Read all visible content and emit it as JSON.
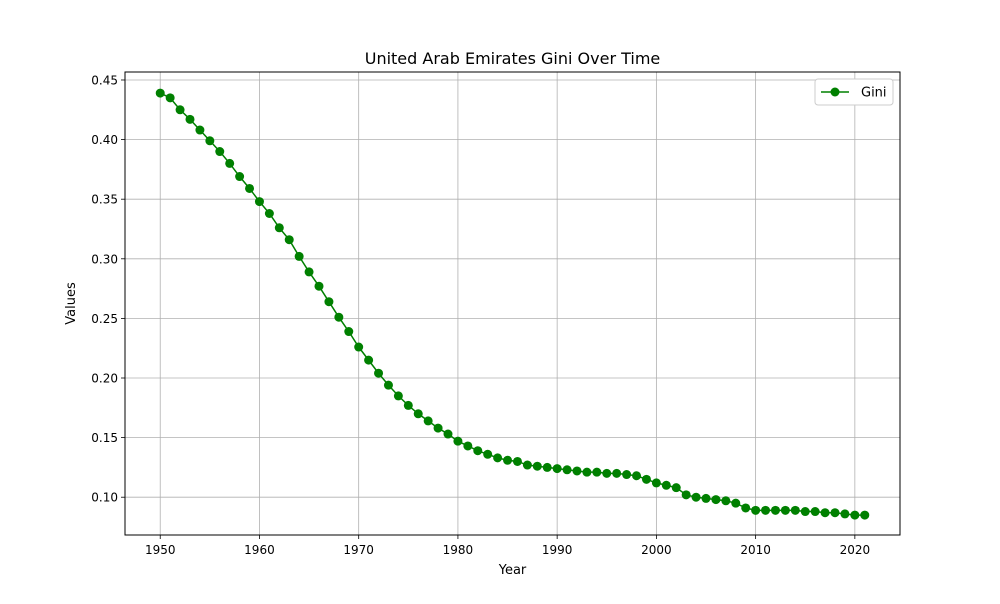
{
  "chart_data": {
    "type": "line",
    "title": "United Arab Emirates Gini Over Time",
    "xlabel": "Year",
    "ylabel": "Values",
    "xlim": [
      1946.45,
      2024.55
    ],
    "ylim": [
      0.0683,
      0.4567
    ],
    "x_ticks": [
      1950,
      1960,
      1970,
      1980,
      1990,
      2000,
      2010,
      2020
    ],
    "y_ticks": [
      0.1,
      0.15,
      0.2,
      0.25,
      0.3,
      0.35,
      0.4,
      0.45
    ],
    "grid": true,
    "legend_position": "top-right",
    "series": [
      {
        "name": "Gini",
        "color": "#008000",
        "marker": "circle",
        "x": [
          1950,
          1951,
          1952,
          1953,
          1954,
          1955,
          1956,
          1957,
          1958,
          1959,
          1960,
          1961,
          1962,
          1963,
          1964,
          1965,
          1966,
          1967,
          1968,
          1969,
          1970,
          1971,
          1972,
          1973,
          1974,
          1975,
          1976,
          1977,
          1978,
          1979,
          1980,
          1981,
          1982,
          1983,
          1984,
          1985,
          1986,
          1987,
          1988,
          1989,
          1990,
          1991,
          1992,
          1993,
          1994,
          1995,
          1996,
          1997,
          1998,
          1999,
          2000,
          2001,
          2002,
          2003,
          2004,
          2005,
          2006,
          2007,
          2008,
          2009,
          2010,
          2011,
          2012,
          2013,
          2014,
          2015,
          2016,
          2017,
          2018,
          2019,
          2020,
          2021
        ],
        "values": [
          0.439,
          0.435,
          0.425,
          0.417,
          0.408,
          0.399,
          0.39,
          0.38,
          0.369,
          0.359,
          0.348,
          0.338,
          0.326,
          0.316,
          0.302,
          0.289,
          0.277,
          0.264,
          0.251,
          0.239,
          0.226,
          0.215,
          0.204,
          0.194,
          0.185,
          0.177,
          0.17,
          0.164,
          0.158,
          0.153,
          0.147,
          0.143,
          0.139,
          0.136,
          0.133,
          0.131,
          0.13,
          0.127,
          0.126,
          0.125,
          0.124,
          0.123,
          0.122,
          0.121,
          0.121,
          0.12,
          0.12,
          0.119,
          0.118,
          0.115,
          0.112,
          0.11,
          0.108,
          0.102,
          0.1,
          0.099,
          0.098,
          0.097,
          0.095,
          0.091,
          0.089,
          0.089,
          0.089,
          0.089,
          0.089,
          0.088,
          0.088,
          0.087,
          0.087,
          0.086,
          0.085,
          0.085
        ]
      }
    ]
  }
}
